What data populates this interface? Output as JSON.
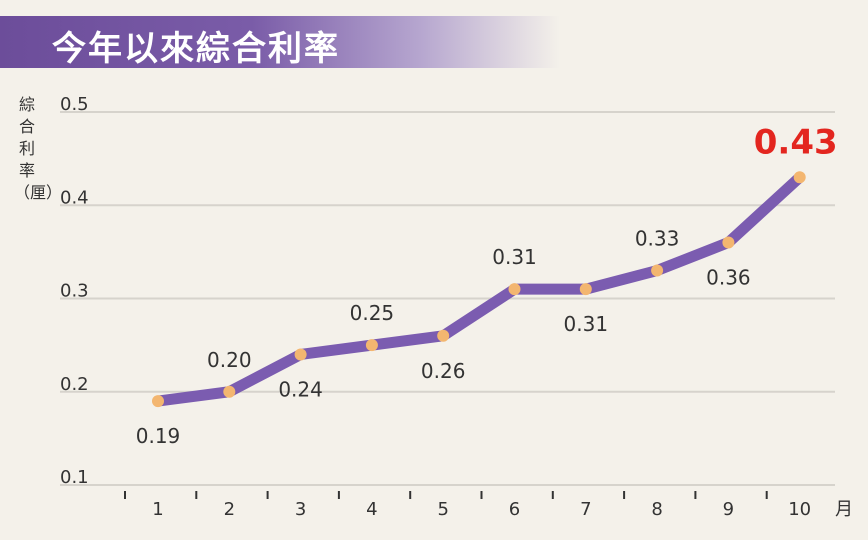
{
  "chart_data": {
    "type": "line",
    "title": "今年以來綜合利率",
    "ylabel": "綜合利率（厘）",
    "xunit": "月",
    "categories": [
      "1",
      "2",
      "3",
      "4",
      "5",
      "6",
      "7",
      "8",
      "9",
      "10"
    ],
    "values": [
      0.19,
      0.2,
      0.24,
      0.25,
      0.26,
      0.31,
      0.31,
      0.33,
      0.36,
      0.43
    ],
    "data_labels": [
      "0.19",
      "0.20",
      "0.24",
      "0.25",
      "0.26",
      "0.31",
      "0.31",
      "0.33",
      "0.36",
      "0.43"
    ],
    "yticks": [
      "0.1",
      "0.2",
      "0.3",
      "0.4",
      "0.5"
    ],
    "ylim": [
      0.1,
      0.5
    ],
    "grid": true,
    "line_color": "#7b5cb0",
    "marker_color": "#f3b670",
    "highlight_color": "#e3261f"
  }
}
